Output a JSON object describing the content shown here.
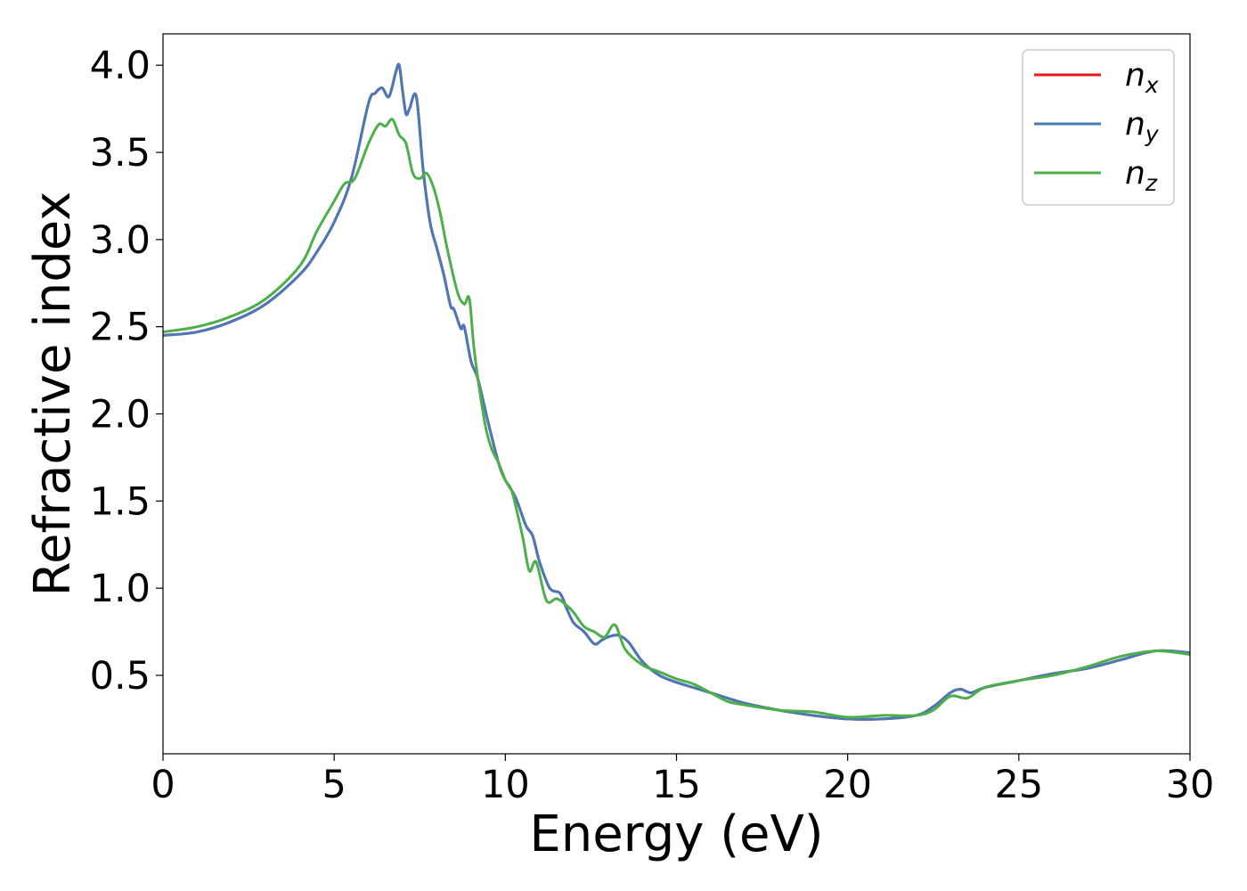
{
  "chart_data": {
    "type": "line",
    "xlabel": "Energy (eV)",
    "ylabel": "Refractive index",
    "xlim": [
      0,
      30
    ],
    "ylim": [
      0.05,
      4.18
    ],
    "xticks": [
      0,
      5,
      10,
      15,
      20,
      25,
      30
    ],
    "xtick_labels": [
      "0",
      "5",
      "10",
      "15",
      "20",
      "25",
      "30"
    ],
    "yticks": [
      0.5,
      1.0,
      1.5,
      2.0,
      2.5,
      3.0,
      3.5,
      4.0
    ],
    "ytick_labels": [
      "0.5",
      "1.0",
      "1.5",
      "2.0",
      "2.5",
      "3.0",
      "3.5",
      "4.0"
    ],
    "grid": false,
    "legend_position": "top-right",
    "series": [
      {
        "name": "n_x",
        "label_base": "n",
        "label_sub": "x",
        "color": "#e41a1c",
        "x": [
          0,
          1,
          2,
          3,
          4,
          4.5,
          5,
          5.5,
          6,
          6.2,
          6.4,
          6.6,
          6.8,
          6.9,
          7.0,
          7.1,
          7.2,
          7.4,
          7.6,
          7.8,
          8.0,
          8.2,
          8.4,
          8.5,
          8.7,
          8.8,
          9.0,
          9.2,
          9.5,
          9.8,
          10.0,
          10.3,
          10.6,
          10.8,
          11.0,
          11.3,
          11.6,
          11.8,
          12.0,
          12.3,
          12.6,
          12.8,
          13.0,
          13.3,
          13.6,
          14.0,
          14.5,
          15.0,
          15.5,
          16.0,
          17.0,
          18.0,
          19.0,
          20.0,
          21.0,
          22.0,
          22.5,
          23.0,
          23.3,
          23.6,
          24.0,
          25.0,
          26.0,
          27.0,
          28.0,
          29.0,
          30.0
        ],
        "y": [
          2.45,
          2.47,
          2.53,
          2.63,
          2.8,
          2.93,
          3.1,
          3.35,
          3.78,
          3.84,
          3.87,
          3.82,
          3.96,
          4.0,
          3.85,
          3.72,
          3.75,
          3.82,
          3.4,
          3.1,
          2.95,
          2.8,
          2.62,
          2.6,
          2.49,
          2.5,
          2.3,
          2.2,
          1.95,
          1.72,
          1.62,
          1.52,
          1.36,
          1.3,
          1.15,
          1.0,
          0.97,
          0.88,
          0.8,
          0.75,
          0.68,
          0.7,
          0.72,
          0.73,
          0.69,
          0.58,
          0.5,
          0.46,
          0.43,
          0.4,
          0.34,
          0.3,
          0.27,
          0.25,
          0.25,
          0.27,
          0.32,
          0.4,
          0.42,
          0.4,
          0.43,
          0.47,
          0.51,
          0.54,
          0.59,
          0.64,
          0.63
        ]
      },
      {
        "name": "n_y",
        "label_base": "n",
        "label_sub": "y",
        "color": "#4a79b7",
        "x": [
          0,
          1,
          2,
          3,
          4,
          4.5,
          5,
          5.5,
          6,
          6.2,
          6.4,
          6.6,
          6.8,
          6.9,
          7.0,
          7.1,
          7.2,
          7.4,
          7.6,
          7.8,
          8.0,
          8.2,
          8.4,
          8.5,
          8.7,
          8.8,
          9.0,
          9.2,
          9.5,
          9.8,
          10.0,
          10.3,
          10.6,
          10.8,
          11.0,
          11.3,
          11.6,
          11.8,
          12.0,
          12.3,
          12.6,
          12.8,
          13.0,
          13.3,
          13.6,
          14.0,
          14.5,
          15.0,
          15.5,
          16.0,
          17.0,
          18.0,
          19.0,
          20.0,
          21.0,
          22.0,
          22.5,
          23.0,
          23.3,
          23.6,
          24.0,
          25.0,
          26.0,
          27.0,
          28.0,
          29.0,
          30.0
        ],
        "y": [
          2.45,
          2.47,
          2.53,
          2.63,
          2.8,
          2.93,
          3.1,
          3.35,
          3.78,
          3.84,
          3.87,
          3.82,
          3.96,
          4.0,
          3.85,
          3.72,
          3.75,
          3.82,
          3.4,
          3.1,
          2.95,
          2.8,
          2.62,
          2.6,
          2.49,
          2.5,
          2.3,
          2.2,
          1.95,
          1.72,
          1.62,
          1.52,
          1.36,
          1.3,
          1.15,
          1.0,
          0.97,
          0.88,
          0.8,
          0.75,
          0.68,
          0.7,
          0.72,
          0.73,
          0.69,
          0.58,
          0.5,
          0.46,
          0.43,
          0.4,
          0.34,
          0.3,
          0.27,
          0.25,
          0.25,
          0.27,
          0.32,
          0.4,
          0.42,
          0.4,
          0.43,
          0.47,
          0.51,
          0.54,
          0.59,
          0.64,
          0.63
        ]
      },
      {
        "name": "n_z",
        "label_base": "n",
        "label_sub": "z",
        "color": "#4daf4a",
        "x": [
          0,
          1,
          2,
          3,
          4,
          4.5,
          5,
          5.3,
          5.6,
          6.0,
          6.3,
          6.5,
          6.7,
          6.9,
          7.1,
          7.3,
          7.5,
          7.7,
          7.9,
          8.1,
          8.3,
          8.6,
          8.8,
          8.95,
          9.1,
          9.4,
          9.6,
          9.8,
          10.0,
          10.2,
          10.5,
          10.7,
          10.9,
          11.2,
          11.5,
          11.8,
          12.0,
          12.3,
          12.6,
          12.9,
          13.2,
          13.5,
          14.0,
          14.5,
          15.0,
          15.5,
          16.0,
          16.5,
          17.0,
          18.0,
          19.0,
          20.0,
          21.0,
          22.0,
          22.5,
          23.0,
          23.5,
          24.0,
          25.0,
          26.0,
          27.0,
          28.0,
          29.0,
          30.0
        ],
        "y": [
          2.47,
          2.5,
          2.56,
          2.66,
          2.85,
          3.05,
          3.22,
          3.32,
          3.35,
          3.55,
          3.66,
          3.65,
          3.69,
          3.6,
          3.55,
          3.38,
          3.35,
          3.38,
          3.3,
          3.15,
          2.95,
          2.7,
          2.63,
          2.66,
          2.35,
          1.95,
          1.8,
          1.72,
          1.62,
          1.55,
          1.3,
          1.1,
          1.15,
          0.93,
          0.94,
          0.9,
          0.86,
          0.78,
          0.75,
          0.72,
          0.79,
          0.65,
          0.56,
          0.52,
          0.48,
          0.45,
          0.4,
          0.35,
          0.33,
          0.3,
          0.29,
          0.26,
          0.27,
          0.27,
          0.3,
          0.38,
          0.37,
          0.43,
          0.47,
          0.5,
          0.55,
          0.61,
          0.64,
          0.62
        ]
      }
    ]
  }
}
